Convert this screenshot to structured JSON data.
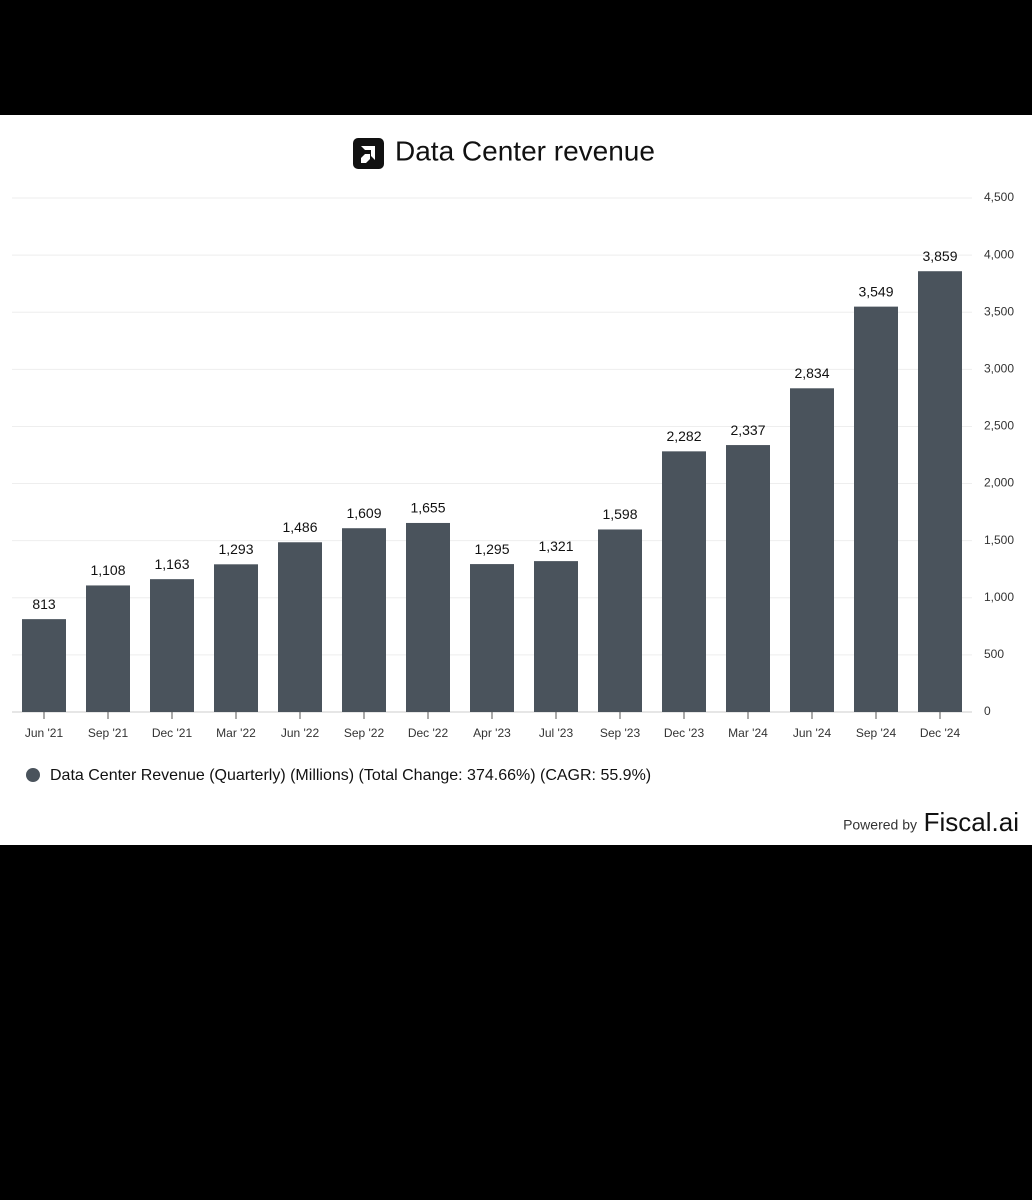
{
  "chart_data": {
    "type": "bar",
    "title": "Data Center revenue",
    "categories": [
      "Jun '21",
      "Sep '21",
      "Dec '21",
      "Mar '22",
      "Jun '22",
      "Sep '22",
      "Dec '22",
      "Apr '23",
      "Jul '23",
      "Sep '23",
      "Dec '23",
      "Mar '24",
      "Jun '24",
      "Sep '24",
      "Dec '24"
    ],
    "series": [
      {
        "name": "Data Center Revenue (Quarterly) (Millions) (Total Change: 374.66%) (CAGR: 55.9%)",
        "color": "#4a535c",
        "values": [
          813,
          1108,
          1163,
          1293,
          1486,
          1609,
          1655,
          1295,
          1321,
          1598,
          2282,
          2337,
          2834,
          3549,
          3859
        ],
        "value_labels": [
          "813",
          "1,108",
          "1,163",
          "1,293",
          "1,486",
          "1,609",
          "1,655",
          "1,295",
          "1,321",
          "1,598",
          "2,282",
          "2,337",
          "2,834",
          "3,549",
          "3,859"
        ]
      }
    ],
    "ylim": [
      0,
      4500
    ],
    "yticks": [
      0,
      500,
      {
        "value": 1000,
        "label": "1,000"
      },
      {
        "value": 1500,
        "label": "1,500"
      },
      {
        "value": 2000,
        "label": "2,000"
      },
      {
        "value": 2500,
        "label": "2,500"
      },
      {
        "value": 3000,
        "label": "3,000"
      },
      {
        "value": 3500,
        "label": "3,500"
      },
      {
        "value": 4000,
        "label": "4,000"
      },
      {
        "value": 4500,
        "label": "4,500"
      }
    ],
    "grid": true,
    "footer": {
      "prefix": "Powered by",
      "brand": "Fiscal.ai"
    }
  }
}
